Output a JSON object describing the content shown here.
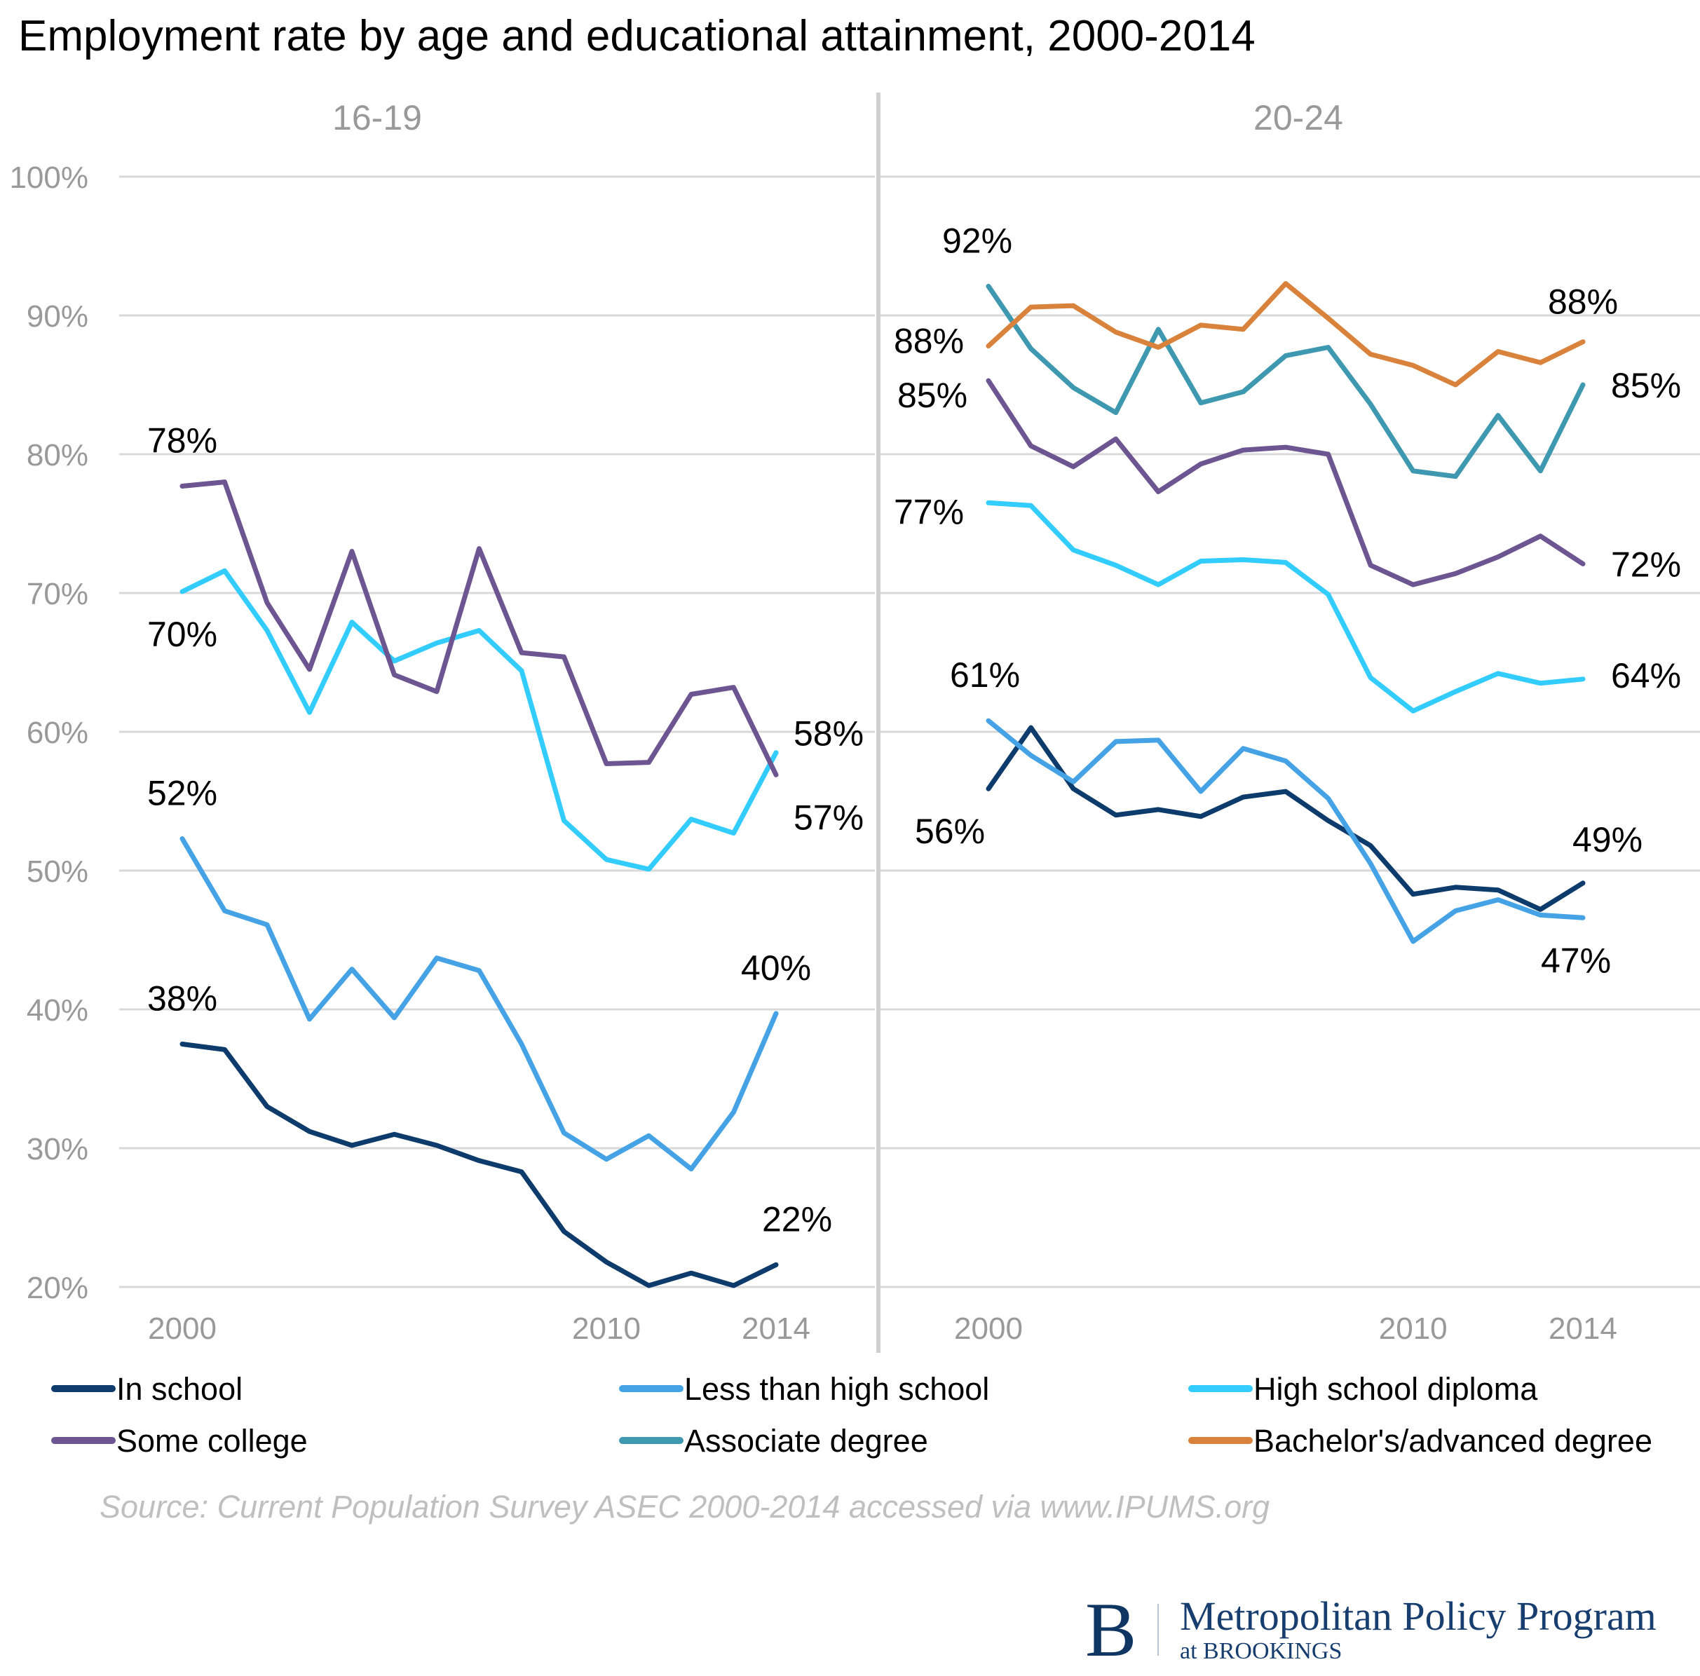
{
  "chart_data": {
    "type": "line",
    "title": "Employment rate by age and educational attainment, 2000-2014",
    "xlabel": "",
    "ylabel": "",
    "ylim": [
      20,
      100
    ],
    "yticks": [
      "100%",
      "90%",
      "80%",
      "70%",
      "60%",
      "50%",
      "40%",
      "30%",
      "20%"
    ],
    "ytick_values": [
      100,
      90,
      80,
      70,
      60,
      50,
      40,
      30,
      20
    ],
    "grid": true,
    "legend_position": "bottom",
    "x": [
      2000,
      2001,
      2002,
      2003,
      2004,
      2005,
      2006,
      2007,
      2008,
      2009,
      2010,
      2011,
      2012,
      2013,
      2014
    ],
    "xticks": [
      2000,
      2010,
      2014
    ],
    "xtick_labels": [
      "2000",
      "2010",
      "2014"
    ],
    "legend": [
      {
        "name": "In school",
        "color": "#0d3b6b"
      },
      {
        "name": "Less than high school",
        "color": "#45a3e5"
      },
      {
        "name": "High school diploma",
        "color": "#33ccff"
      },
      {
        "name": "Some college",
        "color": "#6c5591"
      },
      {
        "name": "Associate degree",
        "color": "#3e98b0"
      },
      {
        "name": "Bachelor's/advanced degree",
        "color": "#d9823b"
      }
    ],
    "panels": [
      {
        "label": "16-19",
        "series": [
          {
            "name": "In school",
            "color": "#0d3b6b",
            "values": [
              37.5,
              37.1,
              33.0,
              31.2,
              30.2,
              31.0,
              30.2,
              29.1,
              28.3,
              24.0,
              21.8,
              20.1,
              21.0,
              20.1,
              21.6
            ],
            "start_label": "38%",
            "end_label": "22%"
          },
          {
            "name": "Less than high school",
            "color": "#45a3e5",
            "values": [
              52.3,
              47.1,
              46.1,
              39.3,
              42.9,
              39.4,
              43.7,
              42.8,
              37.5,
              31.1,
              29.2,
              30.9,
              28.5,
              32.6,
              39.7
            ],
            "start_label": "52%",
            "end_label": "40%"
          },
          {
            "name": "High school diploma",
            "color": "#33ccff",
            "values": [
              70.1,
              71.6,
              67.3,
              61.4,
              67.9,
              65.1,
              66.4,
              67.3,
              64.4,
              53.6,
              50.8,
              50.1,
              53.7,
              52.7,
              58.5
            ],
            "start_label": "70%",
            "end_label": "58%"
          },
          {
            "name": "Some college",
            "color": "#6c5591",
            "values": [
              77.7,
              78.0,
              69.3,
              64.5,
              73.0,
              64.1,
              62.9,
              73.2,
              65.7,
              65.4,
              57.7,
              57.8,
              62.7,
              63.2,
              56.9
            ],
            "start_label": "78%",
            "end_label": "57%"
          }
        ]
      },
      {
        "label": "20-24",
        "series": [
          {
            "name": "In school",
            "color": "#0d3b6b",
            "values": [
              55.9,
              60.3,
              55.9,
              54.0,
              54.4,
              53.9,
              55.3,
              55.7,
              53.6,
              51.8,
              48.3,
              48.8,
              48.6,
              47.2,
              49.1
            ],
            "start_label": "56%",
            "end_label": "49%"
          },
          {
            "name": "Less than high school",
            "color": "#45a3e5",
            "values": [
              60.8,
              58.3,
              56.4,
              59.3,
              59.4,
              55.7,
              58.8,
              57.9,
              55.2,
              50.5,
              44.9,
              47.1,
              47.9,
              46.8,
              46.6
            ],
            "start_label": "61%",
            "end_label": "47%"
          },
          {
            "name": "High school diploma",
            "color": "#33ccff",
            "values": [
              76.5,
              76.3,
              73.1,
              72.0,
              70.6,
              72.3,
              72.4,
              72.2,
              69.9,
              63.9,
              61.5,
              62.9,
              64.2,
              63.5,
              63.8
            ],
            "start_label": "77%",
            "end_label": "64%"
          },
          {
            "name": "Some college",
            "color": "#6c5591",
            "values": [
              85.3,
              80.6,
              79.1,
              81.1,
              77.3,
              79.3,
              80.3,
              80.5,
              80.0,
              72.0,
              70.6,
              71.4,
              72.6,
              74.1,
              72.1
            ],
            "start_label": "85%",
            "end_label": "72%"
          },
          {
            "name": "Associate degree",
            "color": "#3e98b0",
            "values": [
              92.1,
              87.6,
              84.8,
              83.0,
              89.0,
              83.7,
              84.5,
              87.1,
              87.7,
              83.6,
              78.8,
              78.4,
              82.8,
              78.8,
              85.0
            ],
            "start_label": "92%",
            "end_label": "85%"
          },
          {
            "name": "Bachelor's/advanced degree",
            "color": "#d9823b",
            "values": [
              87.8,
              90.6,
              90.7,
              88.8,
              87.7,
              89.3,
              89.0,
              92.3,
              89.8,
              87.2,
              86.4,
              85.0,
              87.4,
              86.6,
              88.1
            ],
            "start_label": "88%",
            "end_label": "88%"
          }
        ]
      }
    ],
    "source": "Source: Current Population Survey ASEC 2000-2014 accessed via www.IPUMS.org"
  },
  "logo": {
    "letter": "B",
    "name": "Metropolitan Policy Program",
    "subtitle": "at BROOKINGS"
  }
}
